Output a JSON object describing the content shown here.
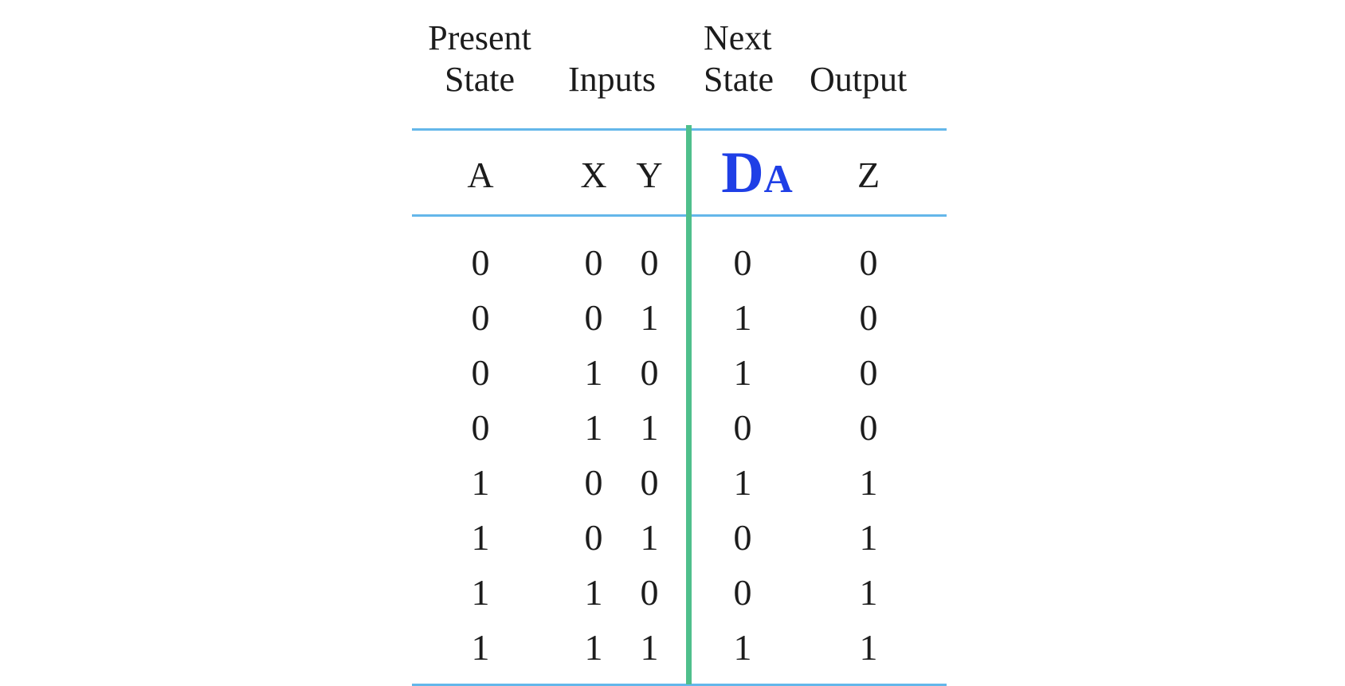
{
  "table": {
    "group_headers": {
      "present_state": [
        "Present",
        "State"
      ],
      "inputs": [
        "Inputs"
      ],
      "next_state": [
        "Next",
        "State"
      ],
      "output": [
        "Output"
      ]
    },
    "column_labels": {
      "a": "A",
      "x": "X",
      "y": "Y",
      "da_main": "D",
      "da_sub": "A",
      "z": "Z"
    },
    "accent_colors": {
      "rules": "#64b7ea",
      "divider": "#4fbf8c",
      "next_state_label": "#1f3fe6"
    },
    "rows": [
      [
        "0",
        "0",
        "0",
        "0",
        "0"
      ],
      [
        "0",
        "0",
        "1",
        "1",
        "0"
      ],
      [
        "0",
        "1",
        "0",
        "1",
        "0"
      ],
      [
        "0",
        "1",
        "1",
        "0",
        "0"
      ],
      [
        "1",
        "0",
        "0",
        "1",
        "1"
      ],
      [
        "1",
        "0",
        "1",
        "0",
        "1"
      ],
      [
        "1",
        "1",
        "0",
        "0",
        "1"
      ],
      [
        "1",
        "1",
        "1",
        "1",
        "1"
      ]
    ]
  }
}
